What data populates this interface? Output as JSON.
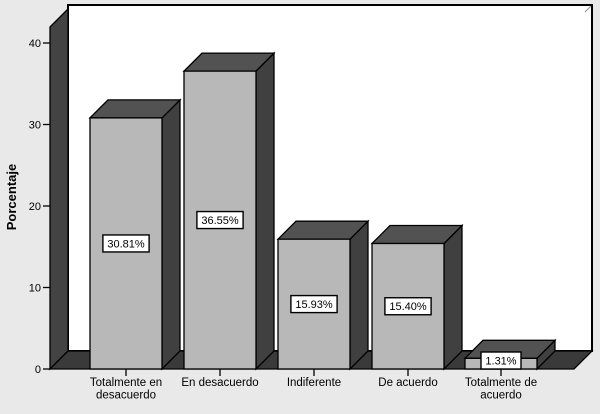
{
  "chart_data": {
    "type": "bar",
    "style": "3d-column",
    "title": "",
    "xlabel": "",
    "ylabel": "Porcentaje",
    "categories": [
      "Totalmente en desacuerdo",
      "En desacuerdo",
      "Indiferente",
      "De acuerdo",
      "Totalmente de acuerdo"
    ],
    "values": [
      30.81,
      36.55,
      15.93,
      15.4,
      1.31
    ],
    "value_labels": [
      "30.81%",
      "36.55%",
      "15.93%",
      "15.40%",
      "1.31%"
    ],
    "y_ticks": [
      0,
      10,
      20,
      30,
      40
    ],
    "ylim": [
      0,
      42
    ],
    "grid": false,
    "legend": null,
    "colors": {
      "background": "#e9e9e9",
      "panel": "#ffffff",
      "bar_front": "#b8b8b8",
      "bar_top": "#525252",
      "bar_side": "#404040",
      "wall": "#434343",
      "floor": "#3a3a3a",
      "outline": "#000000",
      "label_box_bg": "#ffffff",
      "text": "#000000"
    }
  }
}
